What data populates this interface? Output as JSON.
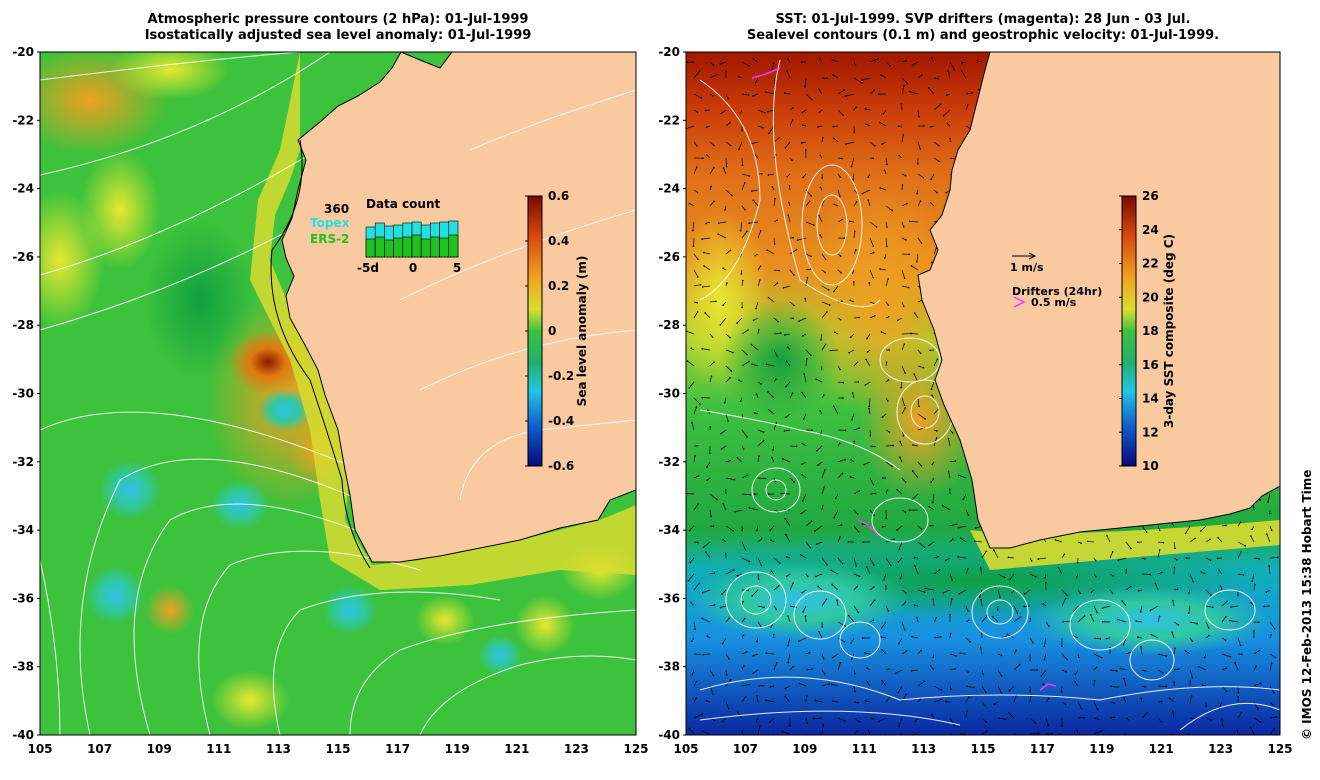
{
  "left_panel": {
    "title_line1": "Atmospheric pressure contours (2 hPa): 01-Jul-1999",
    "title_line2": "Isostatically adjusted sea level anomaly: 01-Jul-1999",
    "colorbar": {
      "label": "Sea level anomaly (m)",
      "ticks": [
        "0.6",
        "0.4",
        "0.2",
        "0",
        "-0.2",
        "-0.4",
        "-0.6"
      ],
      "min": -0.6,
      "max": 0.6
    },
    "inset": {
      "count": "360",
      "sat1": "Topex",
      "sat2": "ERS-2",
      "title": "Data count",
      "xticks": [
        "-5d",
        "0",
        "5"
      ],
      "sat1_color": "#22e0e0",
      "sat2_color": "#20c020"
    }
  },
  "right_panel": {
    "title_line1": "SST: 01-Jul-1999. SVP drifters (magenta): 28 Jun - 03 Jul.",
    "title_line2": "Sealevel contours (0.1 m) and geostrophic velocity: 01-Jul-1999.",
    "colorbar": {
      "label": "3-day SST composite (deg C)",
      "ticks": [
        "26",
        "24",
        "22",
        "20",
        "18",
        "16",
        "14",
        "12",
        "10"
      ],
      "min": 10,
      "max": 26
    },
    "legend": {
      "speed": "1 m/s",
      "drifters": "Drifters (24hr)",
      "drifter_speed": "0.5 m/s",
      "drifter_color": "#ff33ff"
    }
  },
  "axes": {
    "x_ticks": [
      "105",
      "107",
      "109",
      "111",
      "113",
      "115",
      "117",
      "119",
      "121",
      "123",
      "125"
    ],
    "y_ticks": [
      "-20",
      "-22",
      "-24",
      "-26",
      "-28",
      "-30",
      "-32",
      "-34",
      "-36",
      "-38",
      "-40"
    ],
    "lon_range": [
      105,
      125
    ],
    "lat_range": [
      -40,
      -20
    ]
  },
  "credit": "© IMOS 12-Feb-2013 15:38 Hobart Time",
  "colors": {
    "land": "#f9c9a0",
    "ocean_green": "#3cc23c"
  }
}
